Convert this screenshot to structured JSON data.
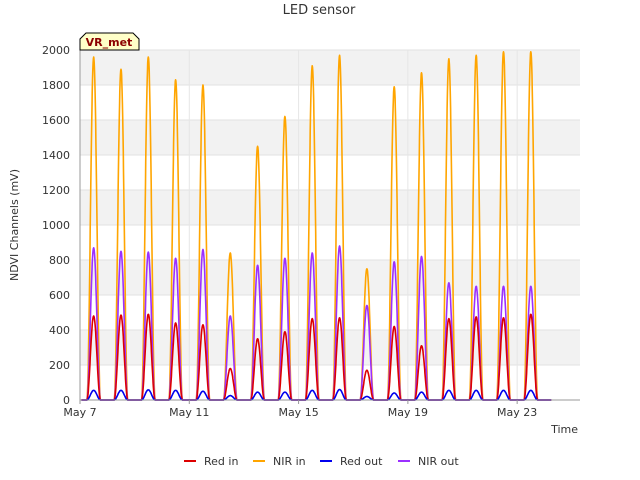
{
  "chart_data": {
    "type": "line",
    "title": "LED sensor",
    "xlabel": "Time",
    "ylabel": "NDVI Channels (mV)",
    "badge": "VR_met",
    "ylim": [
      0,
      2000
    ],
    "yticks": [
      0,
      200,
      400,
      600,
      800,
      1000,
      1200,
      1400,
      1600,
      1800,
      2000
    ],
    "xlim": [
      7,
      25.3
    ],
    "xticks": [
      {
        "value": 7,
        "label": "May 7"
      },
      {
        "value": 11,
        "label": "May 11"
      },
      {
        "value": 15,
        "label": "May 15"
      },
      {
        "value": 19,
        "label": "May 19"
      },
      {
        "value": 23,
        "label": "May 23"
      }
    ],
    "day_peaks": [
      {
        "day": 7,
        "red_in": 480,
        "nir_in": 1960,
        "red_out": 55,
        "nir_out": 870
      },
      {
        "day": 8,
        "red_in": 485,
        "nir_in": 1890,
        "red_out": 55,
        "nir_out": 850
      },
      {
        "day": 9,
        "red_in": 490,
        "nir_in": 1960,
        "red_out": 58,
        "nir_out": 845
      },
      {
        "day": 10,
        "red_in": 440,
        "nir_in": 1830,
        "red_out": 55,
        "nir_out": 810
      },
      {
        "day": 11,
        "red_in": 430,
        "nir_in": 1800,
        "red_out": 50,
        "nir_out": 860
      },
      {
        "day": 12,
        "red_in": 180,
        "nir_in": 840,
        "red_out": 25,
        "nir_out": 480
      },
      {
        "day": 13,
        "red_in": 350,
        "nir_in": 1450,
        "red_out": 45,
        "nir_out": 770
      },
      {
        "day": 14,
        "red_in": 390,
        "nir_in": 1620,
        "red_out": 45,
        "nir_out": 810
      },
      {
        "day": 15,
        "red_in": 465,
        "nir_in": 1910,
        "red_out": 55,
        "nir_out": 840
      },
      {
        "day": 16,
        "red_in": 470,
        "nir_in": 1970,
        "red_out": 60,
        "nir_out": 880
      },
      {
        "day": 17,
        "red_in": 170,
        "nir_in": 750,
        "red_out": 20,
        "nir_out": 540
      },
      {
        "day": 18,
        "red_in": 420,
        "nir_in": 1790,
        "red_out": 40,
        "nir_out": 790
      },
      {
        "day": 19,
        "red_in": 310,
        "nir_in": 1870,
        "red_out": 45,
        "nir_out": 820
      },
      {
        "day": 20,
        "red_in": 465,
        "nir_in": 1950,
        "red_out": 55,
        "nir_out": 670
      },
      {
        "day": 21,
        "red_in": 475,
        "nir_in": 1970,
        "red_out": 55,
        "nir_out": 650
      },
      {
        "day": 22,
        "red_in": 470,
        "nir_in": 1990,
        "red_out": 55,
        "nir_out": 650
      },
      {
        "day": 23,
        "red_in": 490,
        "nir_in": 1990,
        "red_out": 55,
        "nir_out": 650
      }
    ],
    "series": [
      {
        "name": "Red in",
        "key": "red_in",
        "color": "#dd0000"
      },
      {
        "name": "NIR in",
        "key": "nir_in",
        "color": "#ffa500"
      },
      {
        "name": "Red out",
        "key": "red_out",
        "color": "#0000ee"
      },
      {
        "name": "NIR out",
        "key": "nir_out",
        "color": "#9b30ff"
      }
    ]
  }
}
